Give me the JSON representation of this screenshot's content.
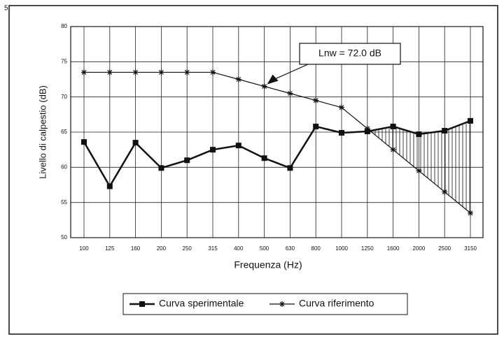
{
  "page_number": "5",
  "chart_data": {
    "type": "line",
    "xlabel": "Frequenza (Hz)",
    "ylabel": "Livello di calpestio (dB)",
    "annotation": "Lnw = 72.0 dB",
    "categories": [
      "100",
      "125",
      "160",
      "200",
      "250",
      "315",
      "400",
      "500",
      "630",
      "800",
      "1000",
      "1250",
      "1600",
      "2000",
      "2500",
      "3150"
    ],
    "series": [
      {
        "name": "Curva sperimentale",
        "color": "#111111",
        "marker": "square",
        "values": [
          63.6,
          57.3,
          63.5,
          59.9,
          61.0,
          62.5,
          63.1,
          61.3,
          59.9,
          65.8,
          64.9,
          65.1,
          65.8,
          64.7,
          65.2,
          66.6
        ]
      },
      {
        "name": "Curva riferimento",
        "color": "#111111",
        "marker": "star",
        "values": [
          73.5,
          73.5,
          73.5,
          73.5,
          73.5,
          73.5,
          72.5,
          71.5,
          70.5,
          69.5,
          68.5,
          65.5,
          62.5,
          59.5,
          56.5,
          53.5
        ]
      }
    ],
    "ylim": [
      50,
      80
    ],
    "yticks": [
      50,
      55,
      60,
      65,
      70,
      75,
      80
    ],
    "grid": true,
    "legend": "bottom"
  }
}
